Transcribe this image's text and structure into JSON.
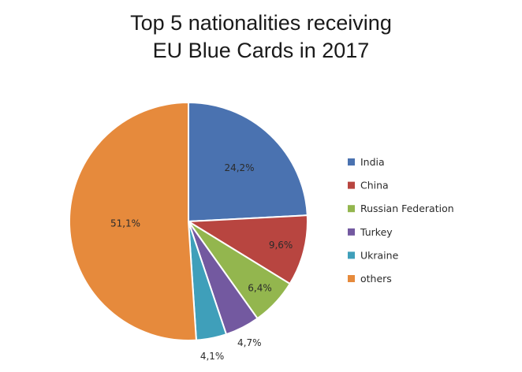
{
  "chart_data": {
    "type": "pie",
    "title_lines": [
      "Top 5 nationalities receiving",
      "EU Blue Cards in 2017"
    ],
    "slices": [
      {
        "name": "India",
        "value": 24.2,
        "label": "24,2%",
        "color": "#4a72b0"
      },
      {
        "name": "China",
        "value": 9.6,
        "label": "9,6%",
        "color": "#b84540"
      },
      {
        "name": "Russian Federation",
        "value": 6.4,
        "label": "6,4%",
        "color": "#93b64e"
      },
      {
        "name": "Turkey",
        "value": 4.7,
        "label": "4,7%",
        "color": "#7359a0"
      },
      {
        "name": "Ukraine",
        "value": 4.1,
        "label": "4,1%",
        "color": "#3f9fba"
      },
      {
        "name": "others",
        "value": 51.1,
        "label": "51,1%",
        "color": "#e68a3c"
      }
    ],
    "legend_placement": "right",
    "start_angle": "12 o'clock",
    "direction": "clockwise"
  }
}
